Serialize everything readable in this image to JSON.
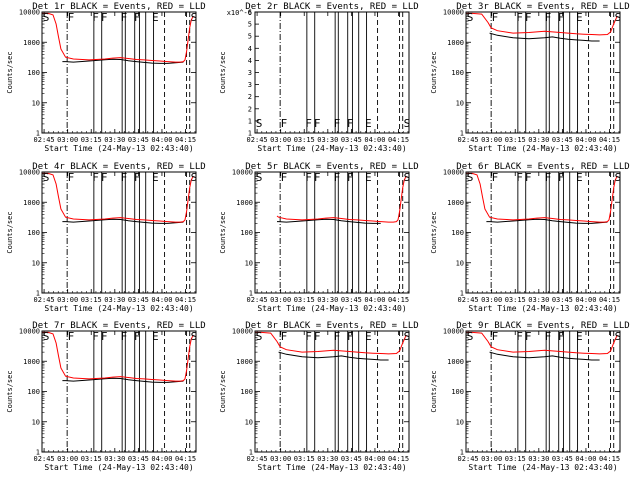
{
  "figure": {
    "x_tick_labels": [
      "02:45",
      "03:00",
      "03:15",
      "03:30",
      "03:45",
      "04:00",
      "04:15"
    ],
    "x_label": "Start Time (24-May-13 02:43:40)",
    "y_label": "Counts/sec",
    "colors": {
      "events": "#000000",
      "lld": "#ff0000",
      "axes": "#000000",
      "background": "#ffffff"
    }
  },
  "chart_data": [
    {
      "type": "line",
      "title": "Det 1r BLACK = Events, RED = LLD",
      "y_scale": "log",
      "ylim": [
        1,
        10000
      ],
      "y_tick_labels": [
        "1",
        "10",
        "100",
        "1000",
        "10000"
      ],
      "xlim_minutes": [
        0,
        98
      ],
      "xlabel": "Start Time (24-May-13 02:43:40)",
      "ylabel": "Counts/sec",
      "markers": [
        "S",
        "F",
        "F",
        "F",
        "F",
        "F",
        "E",
        "S"
      ],
      "profile": "normal"
    },
    {
      "type": "line",
      "title": "Det 2r BLACK = Events, RED = LLD",
      "y_scale": "log",
      "ylim": [
        1e-06,
        6e-06
      ],
      "y_tick_labels": [
        "1",
        "1",
        "2",
        "2",
        "3",
        "3",
        "4",
        "4",
        "5",
        "5",
        "6"
      ],
      "y_tick_exponent": "x10^-6",
      "xlim_minutes": [
        0,
        98
      ],
      "xlabel": "Start Time (24-May-13 02:43:40)",
      "ylabel": "Counts/sec",
      "markers": [
        "S",
        "F",
        "F",
        "F",
        "F",
        "F",
        "E",
        "S"
      ],
      "profile": "empty"
    },
    {
      "type": "line",
      "title": "Det 3r BLACK = Events, RED = LLD",
      "y_scale": "log",
      "ylim": [
        1,
        10000
      ],
      "y_tick_labels": [
        "1",
        "10",
        "100",
        "1000",
        "10000"
      ],
      "xlim_minutes": [
        0,
        98
      ],
      "xlabel": "Start Time (24-May-13 02:43:40)",
      "ylabel": "Counts/sec",
      "markers": [
        "S",
        "F",
        "F",
        "F",
        "F",
        "F",
        "E",
        "S"
      ],
      "profile": "high"
    },
    {
      "type": "line",
      "title": "Det 4r BLACK = Events, RED = LLD",
      "y_scale": "log",
      "ylim": [
        1,
        10000
      ],
      "y_tick_labels": [
        "1",
        "10",
        "100",
        "1000",
        "10000"
      ],
      "xlim_minutes": [
        0,
        98
      ],
      "xlabel": "Start Time (24-May-13 02:43:40)",
      "ylabel": "Counts/sec",
      "markers": [
        "S",
        "F",
        "F",
        "F",
        "F",
        "F",
        "E",
        "S"
      ],
      "profile": "normal"
    },
    {
      "type": "line",
      "title": "Det 5r BLACK = Events, RED = LLD",
      "y_scale": "log",
      "ylim": [
        1,
        10000
      ],
      "y_tick_labels": [
        "1",
        "10",
        "100",
        "1000",
        "10000"
      ],
      "xlim_minutes": [
        0,
        98
      ],
      "xlabel": "Start Time (24-May-13 02:43:40)",
      "ylabel": "Counts/sec",
      "markers": [
        "S",
        "F",
        "F",
        "F",
        "F",
        "F",
        "E",
        "S"
      ],
      "profile": "startlow"
    },
    {
      "type": "line",
      "title": "Det 6r BLACK = Events, RED = LLD",
      "y_scale": "log",
      "ylim": [
        1,
        10000
      ],
      "y_tick_labels": [
        "1",
        "10",
        "100",
        "1000",
        "10000"
      ],
      "xlim_minutes": [
        0,
        98
      ],
      "xlabel": "Start Time (24-May-13 02:43:40)",
      "ylabel": "Counts/sec",
      "markers": [
        "S",
        "F",
        "F",
        "F",
        "F",
        "F",
        "E",
        "S"
      ],
      "profile": "normal"
    },
    {
      "type": "line",
      "title": "Det 7r BLACK = Events, RED = LLD",
      "y_scale": "log",
      "ylim": [
        1,
        10000
      ],
      "y_tick_labels": [
        "1",
        "10",
        "100",
        "1000",
        "10000"
      ],
      "xlim_minutes": [
        0,
        98
      ],
      "xlabel": "Start Time (24-May-13 02:43:40)",
      "ylabel": "Counts/sec",
      "markers": [
        "S",
        "F",
        "F",
        "F",
        "F",
        "F",
        "E",
        "S"
      ],
      "profile": "normal"
    },
    {
      "type": "line",
      "title": "Det 8r BLACK = Events, RED = LLD",
      "y_scale": "log",
      "ylim": [
        1,
        10000
      ],
      "y_tick_labels": [
        "1",
        "10",
        "100",
        "1000",
        "10000"
      ],
      "xlim_minutes": [
        0,
        98
      ],
      "xlabel": "Start Time (24-May-13 02:43:40)",
      "ylabel": "Counts/sec",
      "markers": [
        "S",
        "F",
        "F",
        "F",
        "F",
        "F",
        "E",
        "S"
      ],
      "profile": "high"
    },
    {
      "type": "line",
      "title": "Det 9r BLACK = Events, RED = LLD",
      "y_scale": "log",
      "ylim": [
        1,
        10000
      ],
      "y_tick_labels": [
        "1",
        "10",
        "100",
        "1000",
        "10000"
      ],
      "xlim_minutes": [
        0,
        98
      ],
      "xlabel": "Start Time (24-May-13 02:43:40)",
      "ylabel": "Counts/sec",
      "markers": [
        "S",
        "F",
        "F",
        "F",
        "F",
        "F",
        "E",
        "S"
      ],
      "profile": "high"
    }
  ],
  "shared_series": {
    "x_tick_minutes": [
      1.33,
      16.33,
      31.33,
      46.33,
      61.33,
      76.33,
      91.33
    ],
    "marker_minutes": [
      0.5,
      16.3,
      32.0,
      37.5,
      50.0,
      58.5,
      70.0,
      94.6
    ],
    "solid_line_minutes": [
      33,
      38,
      51,
      53,
      59,
      62,
      66,
      71
    ],
    "dash_line_minutes": [
      78,
      92,
      94
    ],
    "dashdot_line_minutes": [
      16
    ],
    "curves": {
      "normal": {
        "t": [
          0,
          4,
          7,
          9,
          10.5,
          12,
          15,
          20,
          30,
          40,
          45,
          50,
          55,
          60,
          65,
          70,
          75,
          80,
          85,
          88,
          90,
          91,
          92,
          93,
          94,
          95,
          96,
          97
        ],
        "red": [
          9000,
          9000,
          8000,
          4000,
          1500,
          600,
          320,
          280,
          260,
          280,
          300,
          310,
          290,
          270,
          260,
          250,
          240,
          230,
          220,
          220,
          230,
          260,
          500,
          1200,
          3000,
          5500,
          7000,
          7000
        ],
        "black": [
          230,
          230,
          220,
          240,
          265,
          275,
          270,
          245,
          230,
          215,
          205,
          200,
          200,
          210,
          220
        ],
        "black_t": [
          13,
          15,
          20,
          30,
          40,
          45,
          50,
          55,
          60,
          65,
          70,
          75,
          80,
          85,
          90
        ]
      },
      "startlow": {
        "t": [
          14,
          15,
          20,
          30,
          40,
          45,
          50,
          55,
          60,
          65,
          70,
          75,
          80,
          85,
          88,
          90,
          91,
          92,
          93,
          94,
          95,
          96,
          97
        ],
        "red": [
          350,
          320,
          280,
          260,
          280,
          300,
          310,
          290,
          270,
          260,
          250,
          240,
          230,
          220,
          220,
          230,
          260,
          500,
          1200,
          3000,
          5500,
          7000,
          7000
        ],
        "black": [
          230,
          230,
          220,
          240,
          265,
          275,
          270,
          245,
          230,
          215,
          205,
          200,
          200
        ],
        "black_t": [
          14,
          15,
          20,
          30,
          40,
          45,
          50,
          55,
          60,
          65,
          70,
          75,
          80
        ]
      },
      "high": {
        "t": [
          0,
          4,
          10,
          14,
          16,
          20,
          30,
          40,
          45,
          50,
          55,
          60,
          65,
          70,
          75,
          80,
          85,
          90,
          92,
          94,
          96,
          97
        ],
        "red": [
          9000,
          9000,
          8500,
          4500,
          3000,
          2400,
          2000,
          2100,
          2200,
          2300,
          2200,
          2100,
          2000,
          1900,
          1850,
          1800,
          1750,
          1800,
          2200,
          4000,
          7000,
          7000
        ],
        "black": [
          2000,
          1700,
          1400,
          1300,
          1350,
          1400,
          1500,
          1350,
          1250,
          1200,
          1150,
          1100,
          1100
        ],
        "black_t": [
          15,
          20,
          30,
          40,
          45,
          50,
          55,
          60,
          65,
          70,
          75,
          80,
          85
        ]
      }
    }
  }
}
